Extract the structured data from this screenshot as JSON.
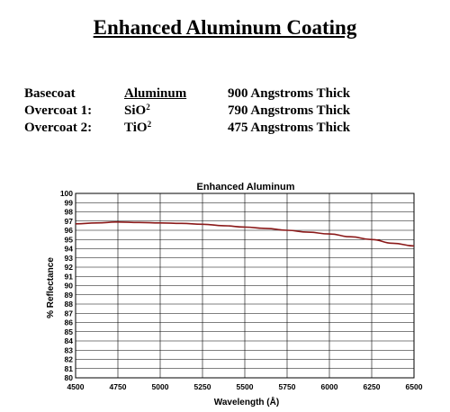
{
  "page": {
    "title": "Enhanced Aluminum Coating"
  },
  "layers": [
    {
      "label": "Basecoat",
      "material": "Aluminum",
      "material_sup": "",
      "thickness": "900 Angstroms Thick"
    },
    {
      "label": "Overcoat 1:",
      "material": "SiO",
      "material_sup": "2",
      "thickness": "790 Angstroms Thick"
    },
    {
      "label": "Overcoat 2:",
      "material": "TiO",
      "material_sup": "2",
      "thickness": "475 Angstroms Thick"
    }
  ],
  "chart_data": {
    "type": "line",
    "title": "Enhanced Aluminum",
    "xlabel": "Wavelength (Å)",
    "ylabel": "% Reflectance",
    "xlim": [
      4500,
      6500
    ],
    "ylim": [
      80,
      100
    ],
    "xticks": [
      4500,
      4750,
      5000,
      5250,
      5500,
      5750,
      6000,
      6250,
      6500
    ],
    "yticks": [
      80,
      81,
      82,
      83,
      84,
      85,
      86,
      87,
      88,
      89,
      90,
      91,
      92,
      93,
      94,
      95,
      96,
      97,
      98,
      99,
      100
    ],
    "grid": true,
    "line_color": "#8b1a1a",
    "series": [
      {
        "x": [
          4500,
          4625,
          4750,
          4875,
          5000,
          5125,
          5250,
          5375,
          5500,
          5625,
          5750,
          5875,
          6000,
          6125,
          6250,
          6375,
          6500
        ],
        "values": [
          96.7,
          96.8,
          96.9,
          96.85,
          96.8,
          96.75,
          96.65,
          96.5,
          96.35,
          96.2,
          96.0,
          95.8,
          95.6,
          95.3,
          95.0,
          94.6,
          94.3
        ]
      }
    ]
  }
}
